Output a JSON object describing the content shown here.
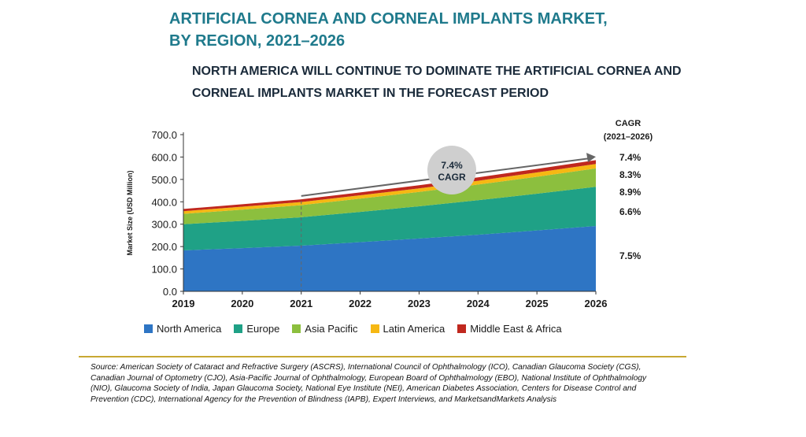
{
  "header": {
    "title_line1": "ARTIFICIAL CORNEA AND CORNEAL IMPLANTS MARKET,",
    "title_line2": "BY REGION, 2021–2026",
    "subtitle_line1": "NORTH AMERICA WILL CONTINUE TO DOMINATE THE ARTIFICIAL CORNEA AND",
    "subtitle_line2": "CORNEAL IMPLANTS MARKET IN THE FORECAST PERIOD"
  },
  "cagr_header": {
    "line1": "CAGR",
    "line2": "(2021–2026)"
  },
  "bubble": {
    "value": "7.4%",
    "label": "CAGR"
  },
  "legend": [
    {
      "label": "North America",
      "color": "#2e75c4"
    },
    {
      "label": "Europe",
      "color": "#1fa186"
    },
    {
      "label": "Asia Pacific",
      "color": "#8cbf3e"
    },
    {
      "label": "Latin America",
      "color": "#f6b813"
    },
    {
      "label": "Middle East & Africa",
      "color": "#c0281e"
    }
  ],
  "source_text": "Source: American Society of Cataract and Refractive Surgery (ASCRS), International Council of Ophthalmology (ICO), Canadian Glaucoma Society (CGS), Canadian Journal of Optometry (CJO), Asia-Pacific Journal of Ophthalmology, European Board of Ophthalmology (EBO), National Institute of Ophthalmology (NIO), Glaucoma Society of India, Japan Glaucoma Society, National Eye Institute (NEI), American Diabetes Association, Centers for Disease Control and Prevention (CDC), International Agency for the Prevention of Blindness (IAPB), Expert Interviews, and MarketsandMarkets Analysis",
  "chart_data": {
    "type": "area",
    "stacked": true,
    "ylabel": "Market Size (USD Million)",
    "ylim": [
      0,
      700
    ],
    "yticks": [
      "0.0",
      "100.0",
      "200.0",
      "300.0",
      "400.0",
      "500.0",
      "600.0",
      "700.0"
    ],
    "x": [
      "2019",
      "2020",
      "2021",
      "2022",
      "2023",
      "2024",
      "2025",
      "2026"
    ],
    "series": [
      {
        "name": "North America",
        "color": "#2e75c4",
        "cagr": "7.5%",
        "values": [
          183,
          193,
          204,
          220,
          236,
          253,
          272,
          292
        ]
      },
      {
        "name": "Europe",
        "color": "#1fa186",
        "cagr": "6.6%",
        "values": [
          117,
          122,
          127,
          135,
          144,
          154,
          164,
          175
        ]
      },
      {
        "name": "Asia Pacific",
        "color": "#8cbf3e",
        "cagr": "8.9%",
        "values": [
          46,
          50,
          54,
          59,
          64,
          70,
          76,
          82
        ]
      },
      {
        "name": "Latin America",
        "color": "#f6b813",
        "cagr": "8.3%",
        "values": [
          12,
          13,
          14,
          15,
          16,
          17,
          19,
          20
        ]
      },
      {
        "name": "Middle East & Africa",
        "color": "#c0281e",
        "cagr": "7.4%",
        "values": [
          10,
          11,
          12,
          13,
          14,
          15,
          16,
          17
        ]
      }
    ],
    "dashed_marker_x": "2021",
    "trend_arrow": {
      "from": "2021",
      "to": "2026"
    }
  }
}
